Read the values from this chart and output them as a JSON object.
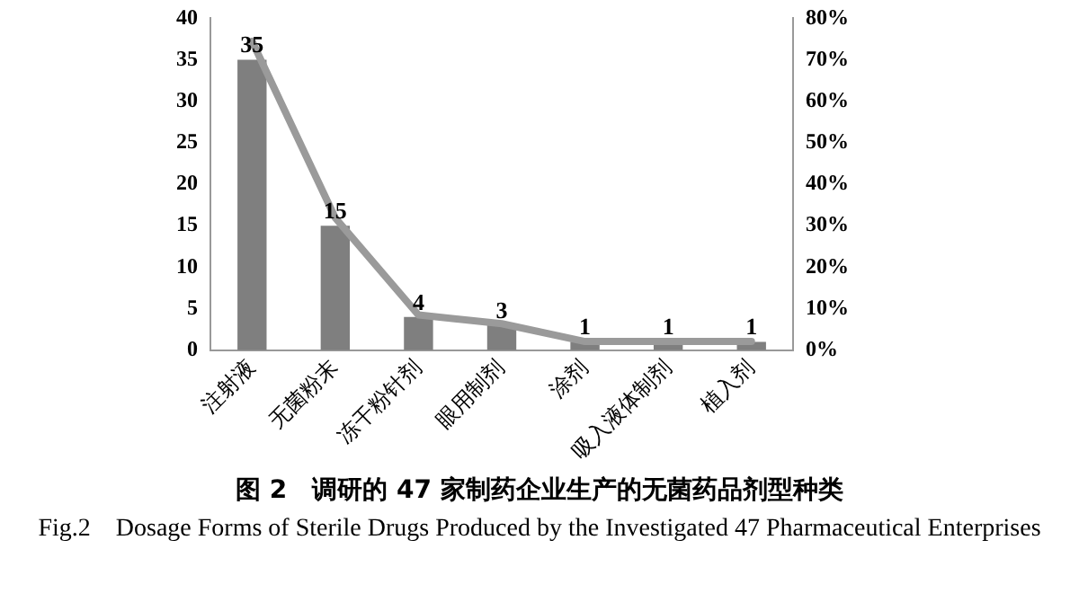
{
  "chart_data": {
    "type": "bar",
    "title": "图 2　调研的 47 家制药企业生产的无菌药品剂型种类",
    "subtitle": "Fig.2　Dosage Forms of Sterile Drugs Produced by the Investigated 47 Pharmaceutical Enterprises",
    "categories": [
      "注射液",
      "无菌粉末",
      "冻干粉针剂",
      "眼用制剂",
      "涂剂",
      "吸入液体制剂",
      "植入剂"
    ],
    "series": [
      {
        "color": "#7f7f7f",
        "values": [
          35,
          15,
          4,
          3,
          1,
          1,
          1
        ],
        "value_labels": [
          "35",
          "15",
          "4",
          "3",
          "1",
          "1",
          "1"
        ]
      },
      {
        "type": "line",
        "axis": "y2",
        "color": "#9a9a9a",
        "values": [
          74.5,
          31.9,
          8.5,
          6.4,
          2.1,
          2.1,
          2.1
        ]
      }
    ],
    "ylim": [
      0,
      40
    ],
    "yticks": [
      0,
      5,
      10,
      15,
      20,
      25,
      30,
      35,
      40
    ],
    "y2lim": [
      0,
      80
    ],
    "y2ticks": [
      {
        "value": 0,
        "label": "0%"
      },
      {
        "value": 10,
        "label": "10%"
      },
      {
        "value": 20,
        "label": "20%"
      },
      {
        "value": 30,
        "label": "30%"
      },
      {
        "value": 40,
        "label": "40%"
      },
      {
        "value": 50,
        "label": "50%"
      },
      {
        "value": 60,
        "label": "60%"
      },
      {
        "value": 70,
        "label": "70%"
      },
      {
        "value": 80,
        "label": "80%"
      }
    ],
    "grid": false,
    "legend": false,
    "marker": "none"
  }
}
